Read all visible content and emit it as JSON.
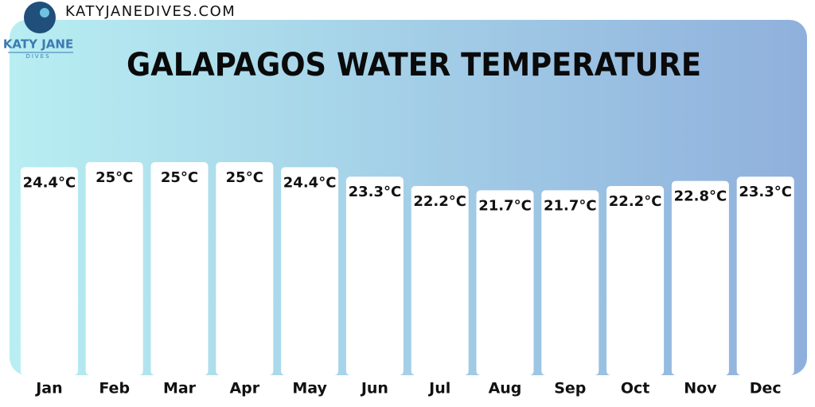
{
  "site": "KATYJANEDIVES.COM",
  "logo": {
    "name": "KATY JANE",
    "tagline": "DIVES"
  },
  "chart_data": {
    "type": "bar",
    "title": "GALAPAGOS WATER TEMPERATURE",
    "categories": [
      "Jan",
      "Feb",
      "Mar",
      "Apr",
      "May",
      "Jun",
      "Jul",
      "Aug",
      "Sep",
      "Oct",
      "Nov",
      "Dec"
    ],
    "values": [
      24.4,
      25,
      25,
      25,
      24.4,
      23.3,
      22.2,
      21.7,
      21.7,
      22.2,
      22.8,
      23.3
    ],
    "value_labels": [
      "24.4°C",
      "25°C",
      "25°C",
      "25°C",
      "24.4°C",
      "23.3°C",
      "22.2°C",
      "21.7°C",
      "21.7°C",
      "22.2°C",
      "22.8°C",
      "23.3°C"
    ],
    "color": "#ffffff"
  }
}
